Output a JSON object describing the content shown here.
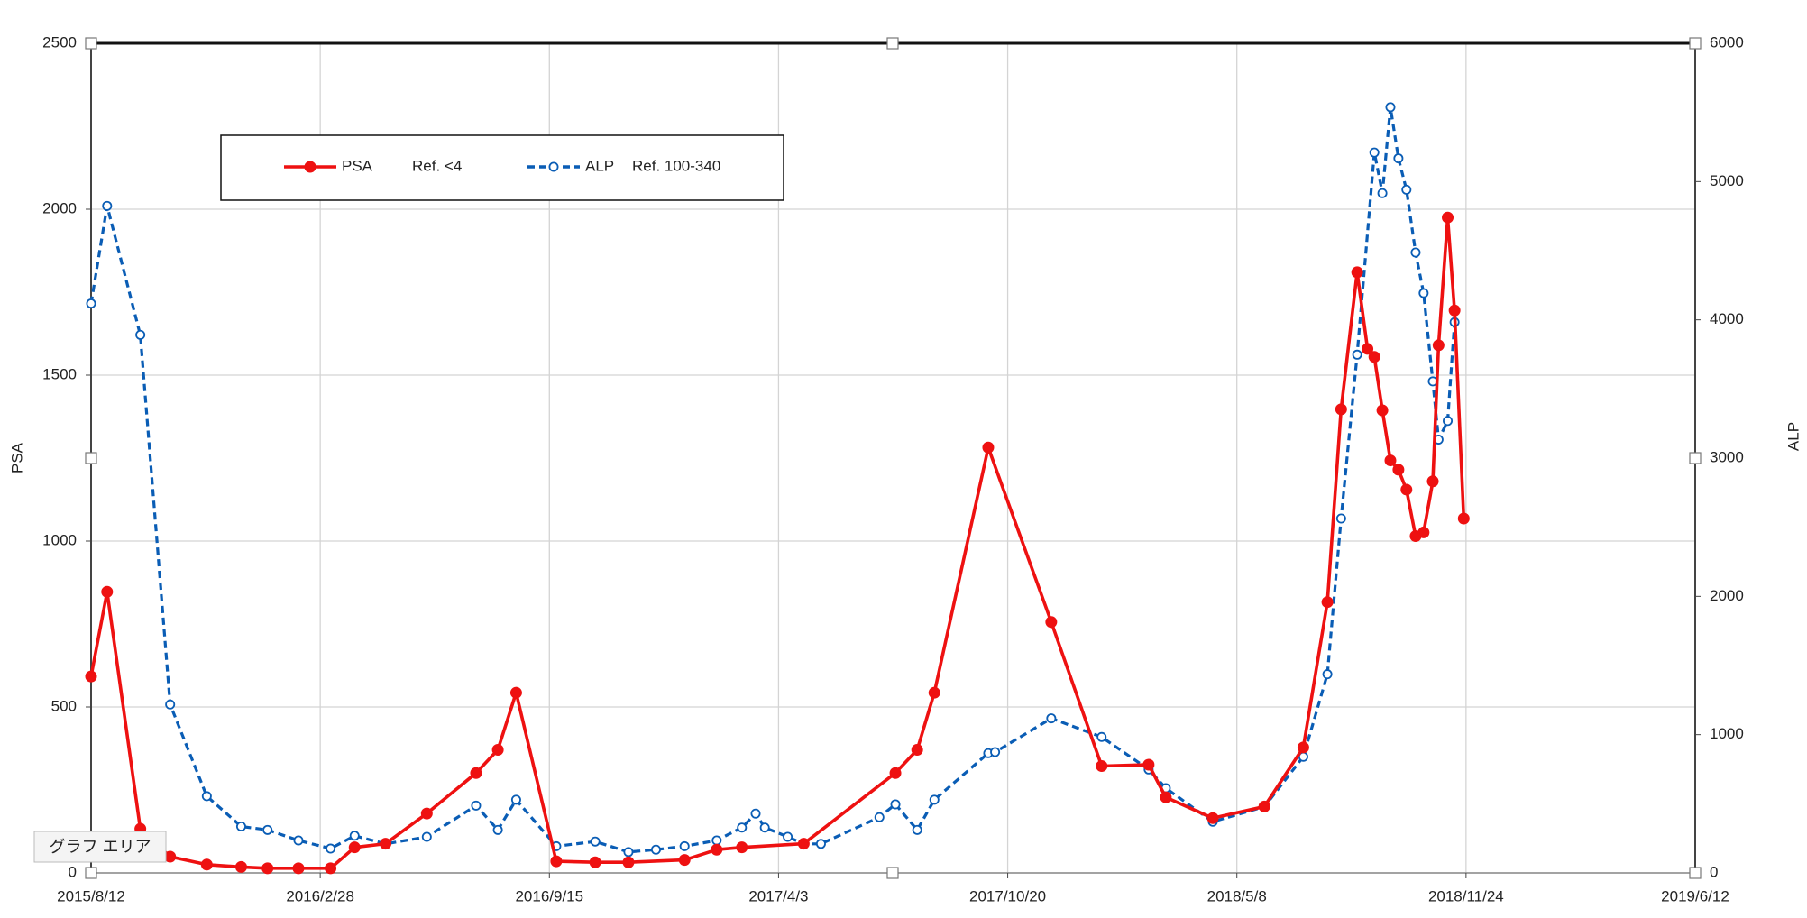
{
  "chart_data": {
    "type": "line",
    "y_label": "PSA",
    "y2_label": "ALP",
    "tooltip": "グラフ エリア",
    "xlim": [
      "2015/8/12",
      "2019/6/12"
    ],
    "xticks": [
      "2015/8/12",
      "2016/2/28",
      "2016/9/15",
      "2017/4/3",
      "2017/10/20",
      "2018/5/8",
      "2018/11/24",
      "2019/6/12"
    ],
    "ylim": [
      0,
      2500
    ],
    "yticks": [
      0,
      500,
      1000,
      1500,
      2000,
      2500
    ],
    "y2lim": [
      0,
      6000
    ],
    "y2ticks": [
      0,
      1000,
      2000,
      3000,
      4000,
      5000,
      6000
    ],
    "grid": true,
    "legend": "top-left",
    "series": [
      {
        "name": "PSA",
        "legend_note": "Ref. <4",
        "color": "#ee1111",
        "style": "solid",
        "marker": "filled",
        "x": [
          "2015/8/12",
          "2015/8/26",
          "2015/9/24",
          "2015/10/20",
          "2015/11/21",
          "2015/12/21",
          "2016/1/13",
          "2016/2/9",
          "2016/3/8",
          "2016/3/29",
          "2016/4/25",
          "2016/5/31",
          "2016/7/13",
          "2016/8/1",
          "2016/8/17",
          "2016/9/21",
          "2016/10/25",
          "2016/11/23",
          "2017/1/11",
          "2017/2/8",
          "2017/3/2",
          "2017/4/25",
          "2017/7/14",
          "2017/8/2",
          "2017/8/17",
          "2017/10/3",
          "2017/11/27",
          "2018/1/10",
          "2018/2/20",
          "2018/3/7",
          "2018/4/17",
          "2018/6/1",
          "2018/7/5",
          "2018/7/26",
          "2018/8/7",
          "2018/8/21",
          "2018/8/30",
          "2018/9/5",
          "2018/9/12",
          "2018/9/19",
          "2018/9/26",
          "2018/10/3",
          "2018/10/11",
          "2018/10/18",
          "2018/10/26",
          "2018/10/31",
          "2018/11/8",
          "2018/11/14",
          "2018/11/22"
        ],
        "values": [
          592,
          847,
          133,
          49,
          25,
          18,
          14,
          14,
          14,
          77,
          88,
          179,
          301,
          371,
          543,
          35,
          32,
          32,
          39,
          70,
          77,
          88,
          301,
          371,
          543,
          1282,
          756,
          322,
          326,
          228,
          165,
          200,
          378,
          816,
          1397,
          1810,
          1579,
          1555,
          1394,
          1243,
          1215,
          1155,
          1015,
          1026,
          1180,
          1590,
          1975,
          1695,
          1068
        ]
      },
      {
        "name": "ALP",
        "legend_note": "Ref. 100-340",
        "color": "#0a5db5",
        "style": "dashed",
        "marker": "hollow",
        "axis": "y2",
        "x": [
          "2015/8/12",
          "2015/8/26",
          "2015/9/24",
          "2015/10/20",
          "2015/11/21",
          "2015/12/21",
          "2016/1/13",
          "2016/2/9",
          "2016/3/8",
          "2016/3/29",
          "2016/4/25",
          "2016/5/31",
          "2016/7/13",
          "2016/8/1",
          "2016/8/17",
          "2016/9/21",
          "2016/10/25",
          "2016/11/23",
          "2016/12/17",
          "2017/1/11",
          "2017/2/8",
          "2017/3/2",
          "2017/3/14",
          "2017/3/22",
          "2017/4/11",
          "2017/4/25",
          "2017/5/10",
          "2017/6/30",
          "2017/7/14",
          "2017/8/2",
          "2017/8/17",
          "2017/10/3",
          "2017/10/9",
          "2017/11/27",
          "2018/1/10",
          "2018/2/20",
          "2018/3/7",
          "2018/4/17",
          "2018/6/1",
          "2018/7/5",
          "2018/7/26",
          "2018/8/7",
          "2018/8/21",
          "2018/9/5",
          "2018/9/12",
          "2018/9/19",
          "2018/9/26",
          "2018/10/3",
          "2018/10/11",
          "2018/10/18",
          "2018/10/26",
          "2018/10/31",
          "2018/11/8",
          "2018/11/14"
        ],
        "values": [
          4118,
          4824,
          3891,
          1218,
          555,
          336,
          311,
          235,
          176,
          269,
          210,
          261,
          487,
          311,
          529,
          193,
          227,
          151,
          168,
          193,
          235,
          328,
          429,
          328,
          261,
          210,
          210,
          403,
          496,
          311,
          529,
          866,
          874,
          1118,
          983,
          748,
          613,
          370,
          479,
          840,
          1437,
          2563,
          3748,
          5210,
          4916,
          5538,
          5168,
          4941,
          4487,
          4193,
          3555,
          3134,
          3269,
          3983
        ]
      }
    ]
  }
}
